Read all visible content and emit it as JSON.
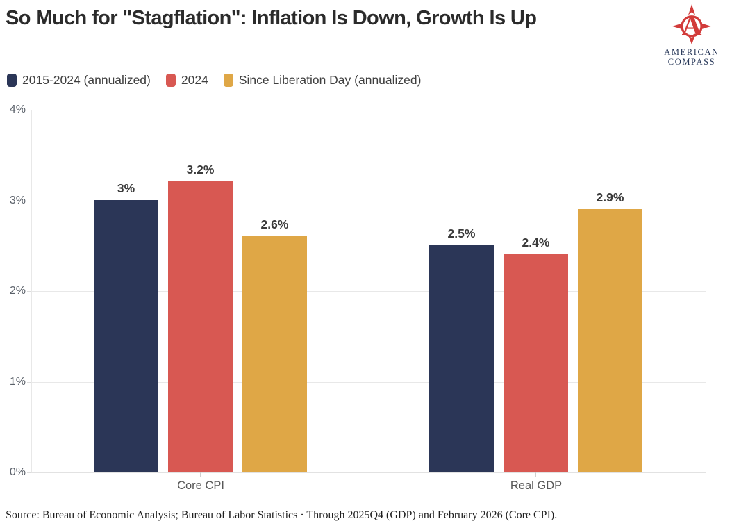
{
  "header": {
    "title": "So Much for \"Stagflation\": Inflation Is Down, Growth Is Up",
    "logo_line1": "AMERICAN",
    "logo_line2": "COMPASS",
    "logo_color": "#d23b3a",
    "logo_text_color": "#29395a"
  },
  "chart_data": {
    "type": "bar",
    "title": "So Much for \"Stagflation\": Inflation Is Down, Growth Is Up",
    "categories": [
      "Core CPI",
      "Real GDP"
    ],
    "series": [
      {
        "name": "2015-2024 (annualized)",
        "color": "#2b3657",
        "values": [
          3.0,
          2.5
        ],
        "labels": [
          "3%",
          "2.5%"
        ]
      },
      {
        "name": "2024",
        "color": "#d85852",
        "values": [
          3.2,
          2.4
        ],
        "labels": [
          "3.2%",
          "2.4%"
        ]
      },
      {
        "name": "Since Liberation Day (annualized)",
        "color": "#dfa746",
        "values": [
          2.6,
          2.9
        ],
        "labels": [
          "2.6%",
          "2.9%"
        ]
      }
    ],
    "ylim": [
      0,
      4
    ],
    "yticks": [
      "4%",
      "3%",
      "2%",
      "1%",
      "0%"
    ],
    "xlabel": "",
    "ylabel": "",
    "grid": true,
    "legend_position": "top-left"
  },
  "footer": {
    "source": "Source: Bureau of Economic Analysis; Bureau of Labor Statistics · Through 2025Q4 (GDP) and February 2026 (Core CPI)."
  }
}
